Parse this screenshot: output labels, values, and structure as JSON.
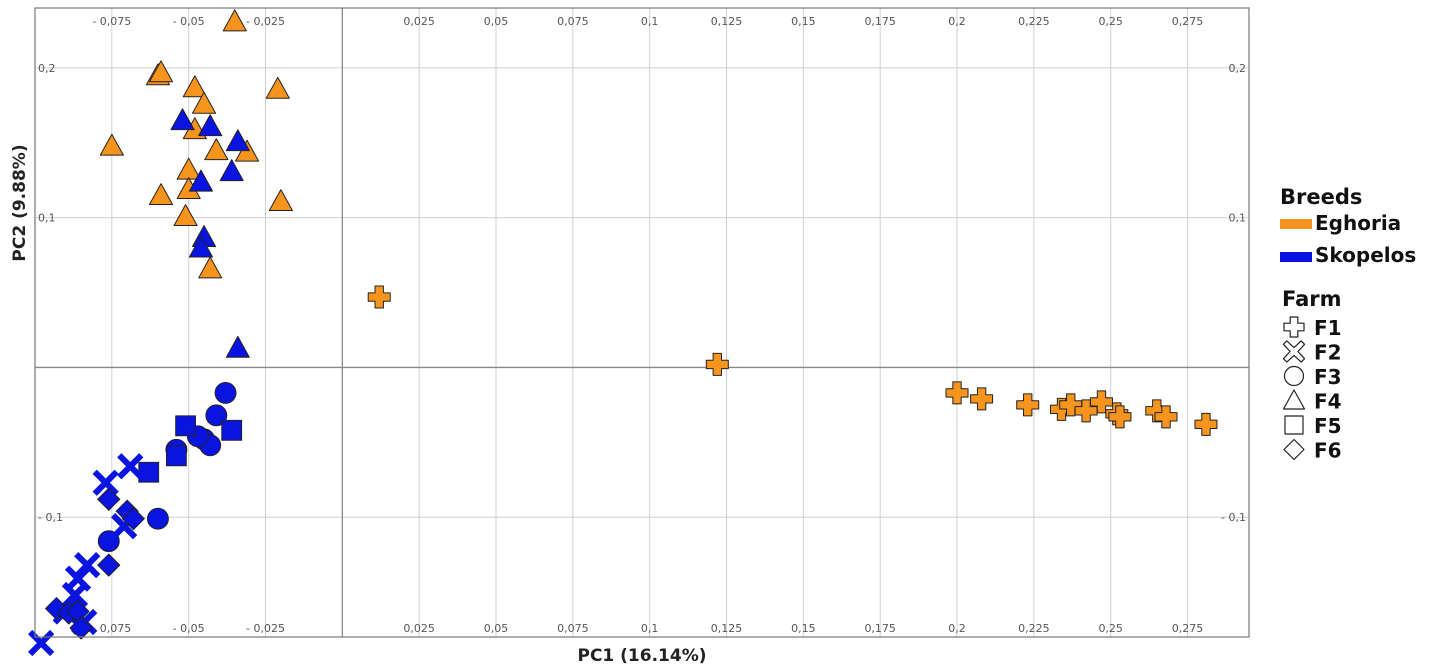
{
  "colors": {
    "Eghoria": "#f7941d",
    "Skopelos": "#0a14e0",
    "outline": "#222222"
  },
  "chart_data": {
    "type": "scatter",
    "xlabel": "PC1 (16.14%)",
    "ylabel": "PC2 (9.88%)",
    "xlim": [
      -0.1,
      0.295
    ],
    "ylim": [
      -0.18,
      0.24
    ],
    "grid": true,
    "legend_position": "right",
    "x_ticks": [
      -0.075,
      -0.05,
      -0.025,
      0.025,
      0.05,
      0.075,
      0.1,
      0.125,
      0.15,
      0.175,
      0.2,
      0.225,
      0.25,
      0.275
    ],
    "x_tick_labels": [
      "- 0,075",
      "- 0,05",
      "- 0,025",
      "0,025",
      "0,05",
      "0,075",
      "0,1",
      "0,125",
      "0,15",
      "0,175",
      "0,2",
      "0,225",
      "0,25",
      "0,275"
    ],
    "y_ticks": [
      0.2,
      0.1,
      -0.1
    ],
    "y_tick_labels": [
      "0,2",
      "0,1",
      "- 0,1"
    ],
    "legend": {
      "breeds_title": "Breeds",
      "breeds": [
        {
          "name": "Eghoria",
          "color": "#f7941d"
        },
        {
          "name": "Skopelos",
          "color": "#0a14e0"
        }
      ],
      "farm_title": "Farm",
      "farms": [
        {
          "name": "F1",
          "shape": "cross"
        },
        {
          "name": "F2",
          "shape": "x"
        },
        {
          "name": "F3",
          "shape": "circle"
        },
        {
          "name": "F4",
          "shape": "triangle"
        },
        {
          "name": "F5",
          "shape": "square"
        },
        {
          "name": "F6",
          "shape": "diamond"
        }
      ]
    },
    "points": [
      {
        "x": 0.012,
        "y": 0.047,
        "breed": "Eghoria",
        "farm": "F1"
      },
      {
        "x": 0.122,
        "y": 0.002,
        "breed": "Eghoria",
        "farm": "F1"
      },
      {
        "x": 0.2,
        "y": -0.017,
        "breed": "Eghoria",
        "farm": "F1"
      },
      {
        "x": 0.208,
        "y": -0.021,
        "breed": "Eghoria",
        "farm": "F1"
      },
      {
        "x": 0.223,
        "y": -0.025,
        "breed": "Eghoria",
        "farm": "F1"
      },
      {
        "x": 0.234,
        "y": -0.028,
        "breed": "Eghoria",
        "farm": "F1"
      },
      {
        "x": 0.237,
        "y": -0.025,
        "breed": "Eghoria",
        "farm": "F1"
      },
      {
        "x": 0.242,
        "y": -0.029,
        "breed": "Eghoria",
        "farm": "F1"
      },
      {
        "x": 0.247,
        "y": -0.023,
        "breed": "Eghoria",
        "farm": "F1"
      },
      {
        "x": 0.252,
        "y": -0.031,
        "breed": "Eghoria",
        "farm": "F1"
      },
      {
        "x": 0.253,
        "y": -0.033,
        "breed": "Eghoria",
        "farm": "F1"
      },
      {
        "x": 0.265,
        "y": -0.029,
        "breed": "Eghoria",
        "farm": "F1"
      },
      {
        "x": 0.268,
        "y": -0.033,
        "breed": "Eghoria",
        "farm": "F1"
      },
      {
        "x": 0.281,
        "y": -0.038,
        "breed": "Eghoria",
        "farm": "F1"
      },
      {
        "x": -0.035,
        "y": 0.231,
        "breed": "Eghoria",
        "farm": "F4"
      },
      {
        "x": -0.06,
        "y": 0.195,
        "breed": "Eghoria",
        "farm": "F4"
      },
      {
        "x": -0.059,
        "y": 0.197,
        "breed": "Eghoria",
        "farm": "F4"
      },
      {
        "x": -0.048,
        "y": 0.187,
        "breed": "Eghoria",
        "farm": "F4"
      },
      {
        "x": -0.045,
        "y": 0.176,
        "breed": "Eghoria",
        "farm": "F4"
      },
      {
        "x": -0.021,
        "y": 0.186,
        "breed": "Eghoria",
        "farm": "F4"
      },
      {
        "x": -0.075,
        "y": 0.148,
        "breed": "Eghoria",
        "farm": "F4"
      },
      {
        "x": -0.048,
        "y": 0.159,
        "breed": "Eghoria",
        "farm": "F4"
      },
      {
        "x": -0.041,
        "y": 0.145,
        "breed": "Eghoria",
        "farm": "F4"
      },
      {
        "x": -0.031,
        "y": 0.144,
        "breed": "Eghoria",
        "farm": "F4"
      },
      {
        "x": -0.05,
        "y": 0.132,
        "breed": "Eghoria",
        "farm": "F4"
      },
      {
        "x": -0.05,
        "y": 0.119,
        "breed": "Eghoria",
        "farm": "F4"
      },
      {
        "x": -0.059,
        "y": 0.115,
        "breed": "Eghoria",
        "farm": "F4"
      },
      {
        "x": -0.02,
        "y": 0.111,
        "breed": "Eghoria",
        "farm": "F4"
      },
      {
        "x": -0.051,
        "y": 0.101,
        "breed": "Eghoria",
        "farm": "F4"
      },
      {
        "x": -0.043,
        "y": 0.066,
        "breed": "Eghoria",
        "farm": "F4"
      },
      {
        "x": -0.052,
        "y": 0.165,
        "breed": "Skopelos",
        "farm": "F4"
      },
      {
        "x": -0.043,
        "y": 0.161,
        "breed": "Skopelos",
        "farm": "F4"
      },
      {
        "x": -0.034,
        "y": 0.151,
        "breed": "Skopelos",
        "farm": "F4"
      },
      {
        "x": -0.036,
        "y": 0.131,
        "breed": "Skopelos",
        "farm": "F4"
      },
      {
        "x": -0.046,
        "y": 0.124,
        "breed": "Skopelos",
        "farm": "F4"
      },
      {
        "x": -0.045,
        "y": 0.087,
        "breed": "Skopelos",
        "farm": "F4"
      },
      {
        "x": -0.046,
        "y": 0.08,
        "breed": "Skopelos",
        "farm": "F4"
      },
      {
        "x": -0.034,
        "y": 0.013,
        "breed": "Skopelos",
        "farm": "F4"
      },
      {
        "x": -0.038,
        "y": -0.017,
        "breed": "Skopelos",
        "farm": "F3"
      },
      {
        "x": -0.041,
        "y": -0.032,
        "breed": "Skopelos",
        "farm": "F3"
      },
      {
        "x": -0.045,
        "y": -0.048,
        "breed": "Skopelos",
        "farm": "F3"
      },
      {
        "x": -0.043,
        "y": -0.052,
        "breed": "Skopelos",
        "farm": "F3"
      },
      {
        "x": -0.047,
        "y": -0.046,
        "breed": "Skopelos",
        "farm": "F3"
      },
      {
        "x": -0.054,
        "y": -0.055,
        "breed": "Skopelos",
        "farm": "F3"
      },
      {
        "x": -0.06,
        "y": -0.101,
        "breed": "Skopelos",
        "farm": "F3"
      },
      {
        "x": -0.076,
        "y": -0.116,
        "breed": "Skopelos",
        "farm": "F3"
      },
      {
        "x": -0.051,
        "y": -0.039,
        "breed": "Skopelos",
        "farm": "F5"
      },
      {
        "x": -0.036,
        "y": -0.042,
        "breed": "Skopelos",
        "farm": "F5"
      },
      {
        "x": -0.054,
        "y": -0.059,
        "breed": "Skopelos",
        "farm": "F5"
      },
      {
        "x": -0.063,
        "y": -0.07,
        "breed": "Skopelos",
        "farm": "F5"
      },
      {
        "x": -0.069,
        "y": -0.066,
        "breed": "Skopelos",
        "farm": "F2"
      },
      {
        "x": -0.077,
        "y": -0.077,
        "breed": "Skopelos",
        "farm": "F2"
      },
      {
        "x": -0.071,
        "y": -0.106,
        "breed": "Skopelos",
        "farm": "F2"
      },
      {
        "x": -0.083,
        "y": -0.132,
        "breed": "Skopelos",
        "farm": "F2"
      },
      {
        "x": -0.086,
        "y": -0.141,
        "breed": "Skopelos",
        "farm": "F2"
      },
      {
        "x": -0.087,
        "y": -0.152,
        "breed": "Skopelos",
        "farm": "F2"
      },
      {
        "x": -0.09,
        "y": -0.163,
        "breed": "Skopelos",
        "farm": "F2"
      },
      {
        "x": -0.084,
        "y": -0.17,
        "breed": "Skopelos",
        "farm": "F2"
      },
      {
        "x": -0.098,
        "y": -0.184,
        "breed": "Skopelos",
        "farm": "F2"
      },
      {
        "x": -0.076,
        "y": -0.088,
        "breed": "Skopelos",
        "farm": "F6"
      },
      {
        "x": -0.07,
        "y": -0.096,
        "breed": "Skopelos",
        "farm": "F6"
      },
      {
        "x": -0.068,
        "y": -0.101,
        "breed": "Skopelos",
        "farm": "F6"
      },
      {
        "x": -0.076,
        "y": -0.132,
        "breed": "Skopelos",
        "farm": "F6"
      },
      {
        "x": -0.093,
        "y": -0.161,
        "breed": "Skopelos",
        "farm": "F6"
      },
      {
        "x": -0.089,
        "y": -0.164,
        "breed": "Skopelos",
        "farm": "F6"
      },
      {
        "x": -0.086,
        "y": -0.163,
        "breed": "Skopelos",
        "farm": "F6"
      },
      {
        "x": -0.085,
        "y": -0.174,
        "breed": "Skopelos",
        "farm": "F6"
      }
    ]
  }
}
